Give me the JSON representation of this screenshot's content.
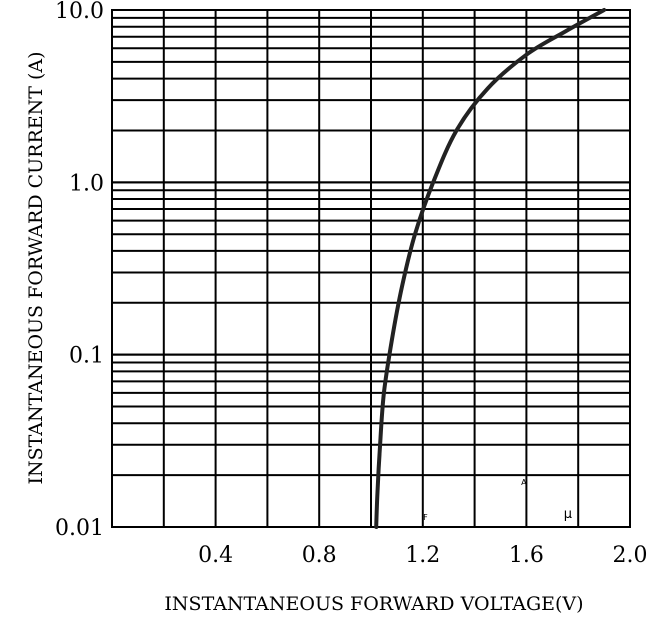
{
  "chart_data": {
    "type": "line",
    "title": "",
    "xlabel": "INSTANTANEOUS FORWARD VOLTAGE(V)",
    "ylabel": "INSTANTANEOUS FORWARD CURRENT (A)",
    "xlim": [
      0,
      2.0
    ],
    "ylim": [
      0.01,
      10.0
    ],
    "y_scale": "log",
    "grid": true,
    "x_ticks": [
      {
        "value": 0.4,
        "label": "0.4"
      },
      {
        "value": 0.8,
        "label": "0.8"
      },
      {
        "value": 1.2,
        "label": "1.2"
      },
      {
        "value": 1.6,
        "label": "1.6"
      },
      {
        "value": 2.0,
        "label": "2.0"
      }
    ],
    "y_ticks": [
      {
        "value": 0.01,
        "label": "0.01"
      },
      {
        "value": 0.1,
        "label": "0.1"
      },
      {
        "value": 1.0,
        "label": "1.0"
      },
      {
        "value": 10.0,
        "label": "10.0"
      }
    ],
    "series": [
      {
        "x": [
          1.02,
          1.025,
          1.035,
          1.05,
          1.08,
          1.12,
          1.17,
          1.24,
          1.33,
          1.45,
          1.6,
          1.75,
          1.9
        ],
        "y": [
          0.01,
          0.016,
          0.03,
          0.06,
          0.12,
          0.25,
          0.5,
          1.0,
          2.0,
          3.5,
          5.5,
          7.5,
          10.0
        ]
      }
    ],
    "stray_marks": [
      {
        "text": "F",
        "x": 1.21,
        "y": 0.011
      },
      {
        "text": "A",
        "x": 1.59,
        "y": 0.0175
      },
      {
        "text": "µ",
        "x": 1.76,
        "y": 0.0113
      }
    ]
  }
}
